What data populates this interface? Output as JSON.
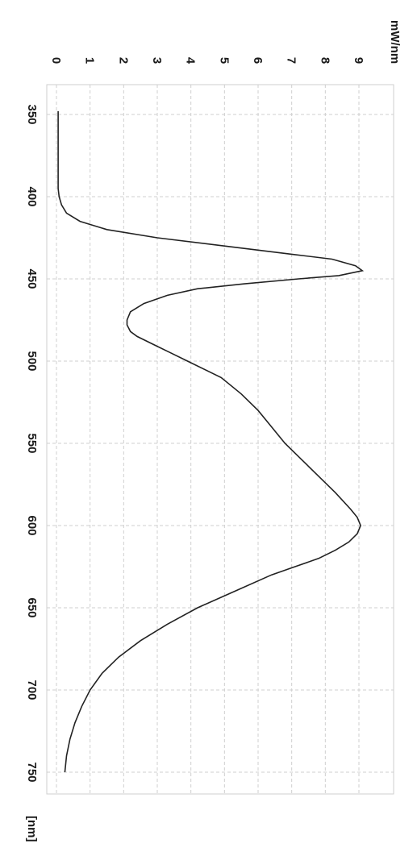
{
  "chart_data": {
    "type": "line",
    "orientation": "rotated-90-clockwise",
    "xlabel": "[nm]",
    "ylabel": "mW/nm",
    "xlim": [
      330,
      760
    ],
    "ylim": [
      -0.3,
      9.8
    ],
    "x_ticks": [
      350,
      400,
      450,
      500,
      550,
      600,
      650,
      700,
      750
    ],
    "y_ticks": [
      0,
      1,
      2,
      3,
      4,
      5,
      6,
      7,
      8,
      9
    ],
    "grid": true,
    "series": [
      {
        "x": [
          348,
          360,
          370,
          380,
          390,
          395,
          400,
          405,
          410,
          415,
          420,
          425,
          430,
          435,
          438,
          442,
          445,
          448,
          450,
          453,
          456,
          460,
          465,
          470,
          475,
          478,
          482,
          485,
          490,
          495,
          500,
          510,
          520,
          530,
          540,
          550,
          560,
          570,
          580,
          590,
          595,
          600,
          605,
          610,
          615,
          620,
          625,
          630,
          640,
          650,
          660,
          670,
          680,
          690,
          700,
          710,
          720,
          730,
          740,
          750
        ],
        "y": [
          0.05,
          0.05,
          0.05,
          0.05,
          0.05,
          0.05,
          0.08,
          0.15,
          0.3,
          0.7,
          1.5,
          3.0,
          5.0,
          7.0,
          8.2,
          8.9,
          9.1,
          8.4,
          7.2,
          5.6,
          4.2,
          3.3,
          2.6,
          2.2,
          2.1,
          2.1,
          2.2,
          2.4,
          2.9,
          3.4,
          3.9,
          4.9,
          5.5,
          6.0,
          6.4,
          6.8,
          7.3,
          7.8,
          8.3,
          8.75,
          8.95,
          9.05,
          8.95,
          8.7,
          8.3,
          7.8,
          7.1,
          6.4,
          5.3,
          4.2,
          3.3,
          2.5,
          1.85,
          1.35,
          1.0,
          0.75,
          0.55,
          0.4,
          0.3,
          0.25
        ]
      }
    ]
  }
}
